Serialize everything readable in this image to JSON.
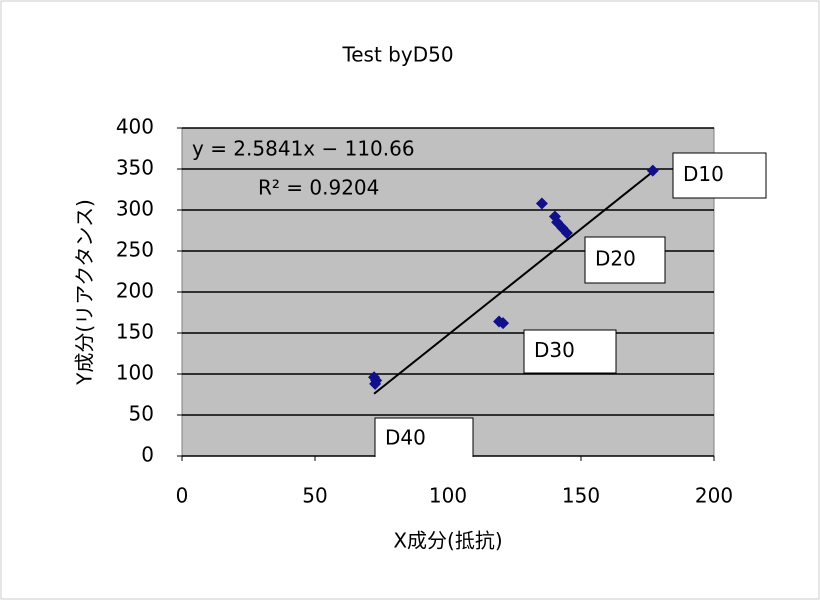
{
  "chart_data": {
    "type": "scatter",
    "title": "Test  byD50",
    "x_label": "X成分(抵抗)",
    "y_label": "Y成分(リアクタンス)",
    "series": [
      {
        "name": "data",
        "color": "#10108a",
        "x": [
          177,
          135.3,
          140.2,
          141,
          143,
          144.7,
          119.2,
          120.7,
          72.2,
          72.6,
          73
        ],
        "values": [
          348,
          308,
          292,
          285,
          278,
          272,
          164,
          162,
          96,
          88,
          92
        ]
      }
    ],
    "trendline": {
      "slope": 2.5841,
      "intercept": -110.66,
      "equation": "y = 2.5841x − 110.66",
      "r_squared": "R² = 0.9204"
    },
    "annotations": [
      "D10",
      "D20",
      "D30",
      "D40"
    ],
    "xlim": [
      0,
      200
    ],
    "xticks": [
      0,
      50,
      100,
      150,
      200
    ],
    "ylim": [
      0,
      400
    ],
    "yticks": [
      0,
      50,
      100,
      150,
      200,
      250,
      300,
      350,
      400
    ],
    "grid": true,
    "plot_background": "#c0c0c0"
  }
}
